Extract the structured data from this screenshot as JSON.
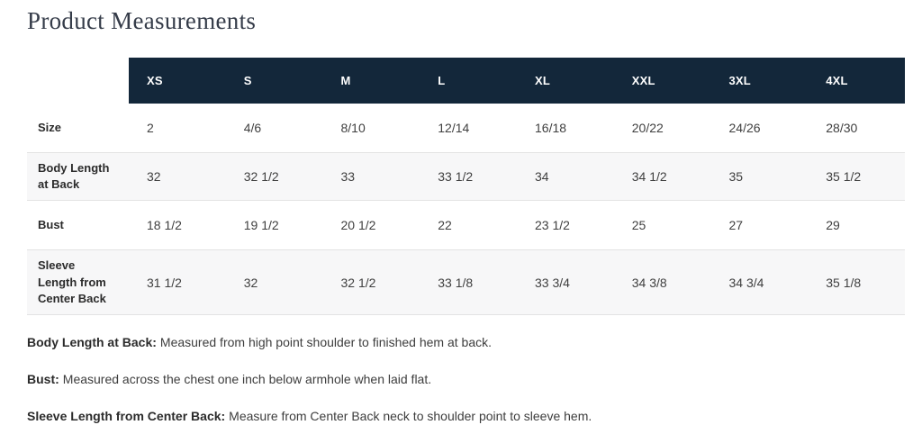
{
  "page": {
    "title": "Product Measurements"
  },
  "colors": {
    "header_bg": "#13273a",
    "header_text": "#ffffff",
    "stripe_bg": "#f7f7f8",
    "border": "#e3e3e3",
    "title_text": "#353c49"
  },
  "table": {
    "columns": [
      "XS",
      "S",
      "M",
      "L",
      "XL",
      "XXL",
      "3XL",
      "4XL"
    ],
    "rows": [
      {
        "label": "Size",
        "values": [
          "2",
          "4/6",
          "8/10",
          "12/14",
          "16/18",
          "20/22",
          "24/26",
          "28/30"
        ]
      },
      {
        "label": "Body Length at Back",
        "values": [
          "32",
          "32 1/2",
          "33",
          "33 1/2",
          "34",
          "34 1/2",
          "35",
          "35 1/2"
        ]
      },
      {
        "label": "Bust",
        "values": [
          "18 1/2",
          "19 1/2",
          "20 1/2",
          "22",
          "23 1/2",
          "25",
          "27",
          "29"
        ]
      },
      {
        "label": "Sleeve Length from Center Back",
        "values": [
          "31 1/2",
          "32",
          "32 1/2",
          "33 1/8",
          "33 3/4",
          "34 3/8",
          "34 3/4",
          "35 1/8"
        ]
      }
    ]
  },
  "footnotes": [
    {
      "term": "Body Length at Back:",
      "definition": "Measured from high point shoulder to finished hem at back."
    },
    {
      "term": "Bust:",
      "definition": "Measured across the chest one inch below armhole when laid flat."
    },
    {
      "term": "Sleeve Length from Center Back:",
      "definition": "Measure from Center Back neck to shoulder point to sleeve hem."
    }
  ]
}
